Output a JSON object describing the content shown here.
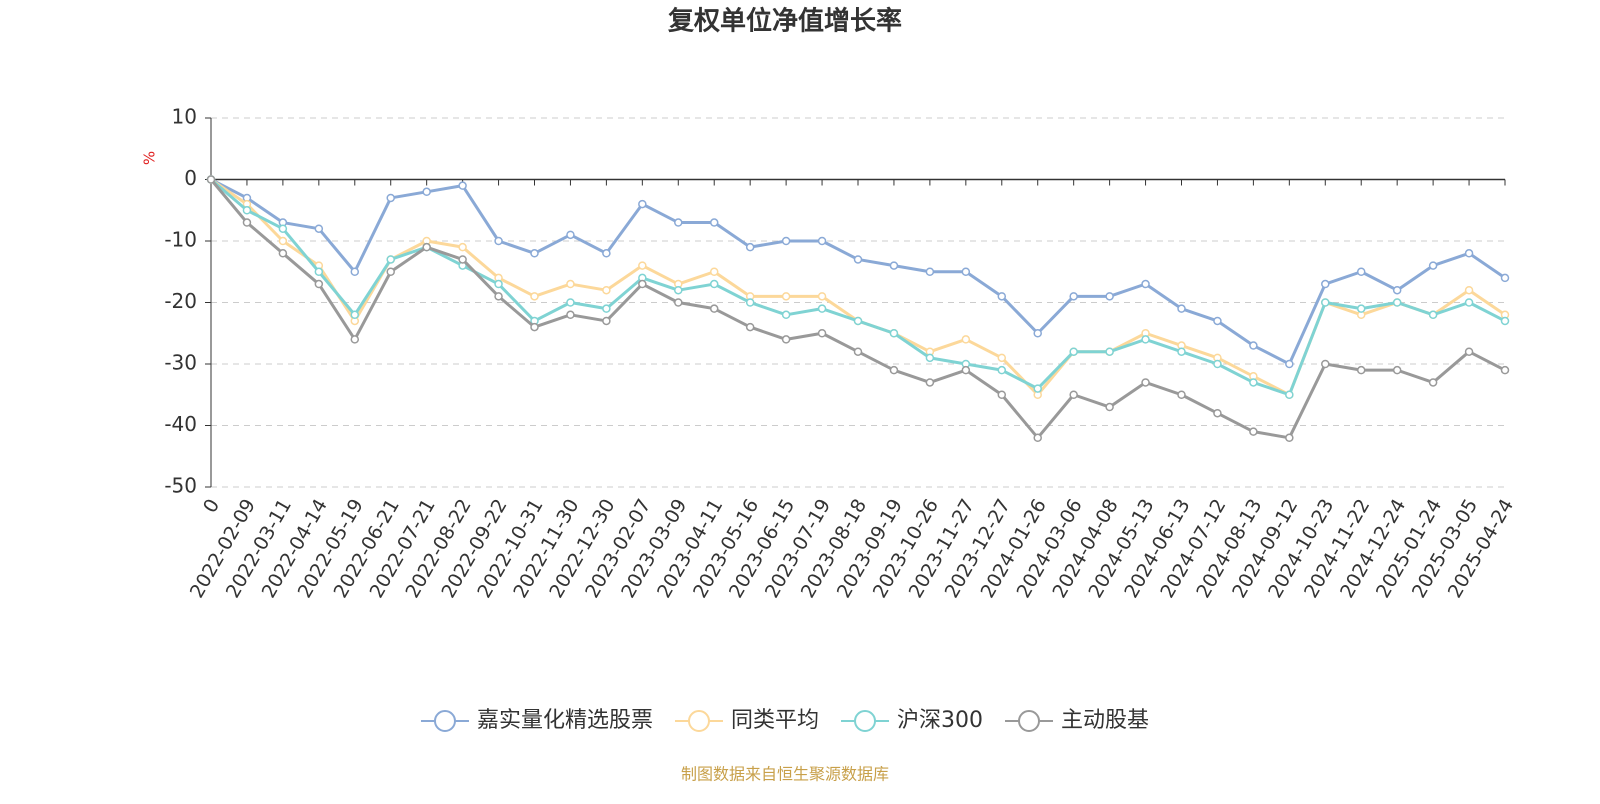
{
  "chart_data": {
    "type": "line",
    "title": "复权单位净值增长率",
    "y_label": "%",
    "source": "制图数据来自恒生聚源数据库",
    "categories": [
      "0",
      "2022-02-09",
      "2022-03-11",
      "2022-04-14",
      "2022-05-19",
      "2022-06-21",
      "2022-07-21",
      "2022-08-22",
      "2022-09-22",
      "2022-10-31",
      "2022-11-30",
      "2022-12-30",
      "2023-02-07",
      "2023-03-09",
      "2023-04-11",
      "2023-05-16",
      "2023-06-15",
      "2023-07-19",
      "2023-08-18",
      "2023-09-19",
      "2023-10-26",
      "2023-11-27",
      "2023-12-27",
      "2024-01-26",
      "2024-03-06",
      "2024-04-08",
      "2024-05-13",
      "2024-06-13",
      "2024-07-12",
      "2024-08-13",
      "2024-09-12",
      "2024-10-23",
      "2024-11-22",
      "2024-12-24",
      "2025-01-24",
      "2025-03-05",
      "2025-04-24"
    ],
    "series": [
      {
        "name": "嘉实量化精选股票",
        "color": "#8aa9d6",
        "values": [
          0,
          -3,
          -7,
          -8,
          -15,
          -3,
          -2,
          -1,
          -10,
          -12,
          -9,
          -12,
          -4,
          -7,
          -7,
          -11,
          -10,
          -10,
          -13,
          -14,
          -15,
          -15,
          -19,
          -25,
          -19,
          -19,
          -17,
          -21,
          -23,
          -27,
          -30,
          -17,
          -15,
          -18,
          -14,
          -12,
          -16
        ]
      },
      {
        "name": "同类平均",
        "color": "#fcd89a",
        "values": [
          0,
          -4,
          -10,
          -14,
          -23,
          -13,
          -10,
          -11,
          -16,
          -19,
          -17,
          -18,
          -14,
          -17,
          -15,
          -19,
          -19,
          -19,
          -23,
          -25,
          -28,
          -26,
          -29,
          -35,
          -28,
          -28,
          -25,
          -27,
          -29,
          -32,
          -35,
          -20,
          -22,
          -20,
          -22,
          -18,
          -22
        ]
      },
      {
        "name": "沪深300",
        "color": "#7fd3d3",
        "values": [
          0,
          -5,
          -8,
          -15,
          -22,
          -13,
          -11,
          -14,
          -17,
          -23,
          -20,
          -21,
          -16,
          -18,
          -17,
          -20,
          -22,
          -21,
          -23,
          -25,
          -29,
          -30,
          -31,
          -34,
          -28,
          -28,
          -26,
          -28,
          -30,
          -33,
          -35,
          -20,
          -21,
          -20,
          -22,
          -20,
          -23
        ]
      },
      {
        "name": "主动股基",
        "color": "#999999",
        "values": [
          0,
          -7,
          -12,
          -17,
          -26,
          -15,
          -11,
          -13,
          -19,
          -24,
          -22,
          -23,
          -17,
          -20,
          -21,
          -24,
          -26,
          -25,
          -28,
          -31,
          -33,
          -31,
          -35,
          -42,
          -35,
          -37,
          -33,
          -35,
          -38,
          -41,
          -42,
          -30,
          -31,
          -31,
          -33,
          -28,
          -31
        ]
      }
    ],
    "ylim": [
      -50,
      10
    ],
    "yticks": [
      -50,
      -40,
      -30,
      -20,
      -10,
      0,
      10
    ],
    "grid": true,
    "legend": "bottom"
  }
}
